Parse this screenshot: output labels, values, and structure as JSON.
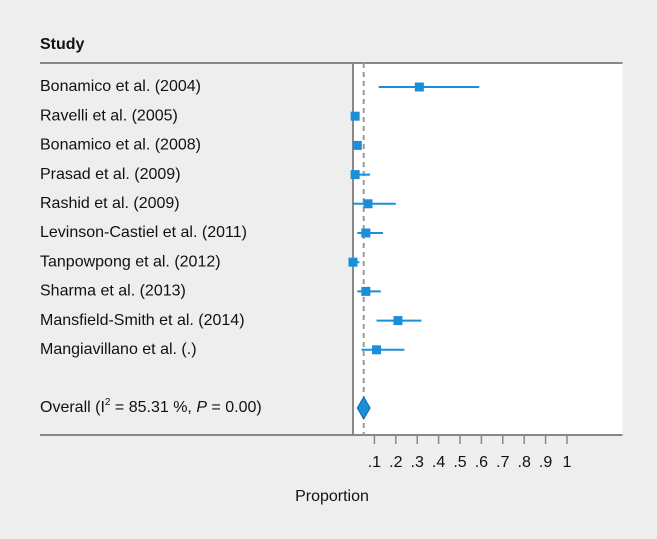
{
  "chart_data": {
    "type": "forest",
    "header": "Study",
    "xlabel": "Proportion",
    "color": "#1a8fd8",
    "xlim": [
      0,
      1.25
    ],
    "xticks": [
      {
        "value": 0.1,
        "label": ".1"
      },
      {
        "value": 0.2,
        "label": ".2"
      },
      {
        "value": 0.3,
        "label": ".3"
      },
      {
        "value": 0.4,
        "label": ".4"
      },
      {
        "value": 0.5,
        "label": ".5"
      },
      {
        "value": 0.6,
        "label": ".6"
      },
      {
        "value": 0.7,
        "label": ".7"
      },
      {
        "value": 0.8,
        "label": ".8"
      },
      {
        "value": 0.9,
        "label": ".9"
      },
      1
    ],
    "categories": [
      "Bonamico et al. (2004)",
      "Ravelli et al. (2005)",
      "Bonamico et al. (2008)",
      "Prasad et al. (2009)",
      "Rashid et al. (2009)",
      "Levinson-Castiel et al. (2011)",
      "Tanpowpong et al. (2012)",
      "Sharma et al. (2013)",
      "Mansfield-Smith et al. (2014)",
      "Mangiavillano et al. (.)"
    ],
    "values": [
      0.31,
      0.01,
      0.02,
      0.01,
      0.07,
      0.06,
      0.0,
      0.06,
      0.21,
      0.11
    ],
    "lower": [
      0.12,
      0.0,
      0.01,
      0.0,
      0.0,
      0.02,
      0.0,
      0.02,
      0.11,
      0.04
    ],
    "upper": [
      0.59,
      0.02,
      0.03,
      0.08,
      0.2,
      0.14,
      0.03,
      0.13,
      0.32,
      0.24
    ],
    "overall": {
      "label": [
        "Overall (I",
        "2",
        " = 85.31 %, ",
        "P",
        " = 0.00)"
      ],
      "estimate": 0.05,
      "lower": 0.02,
      "upper": 0.08
    }
  }
}
